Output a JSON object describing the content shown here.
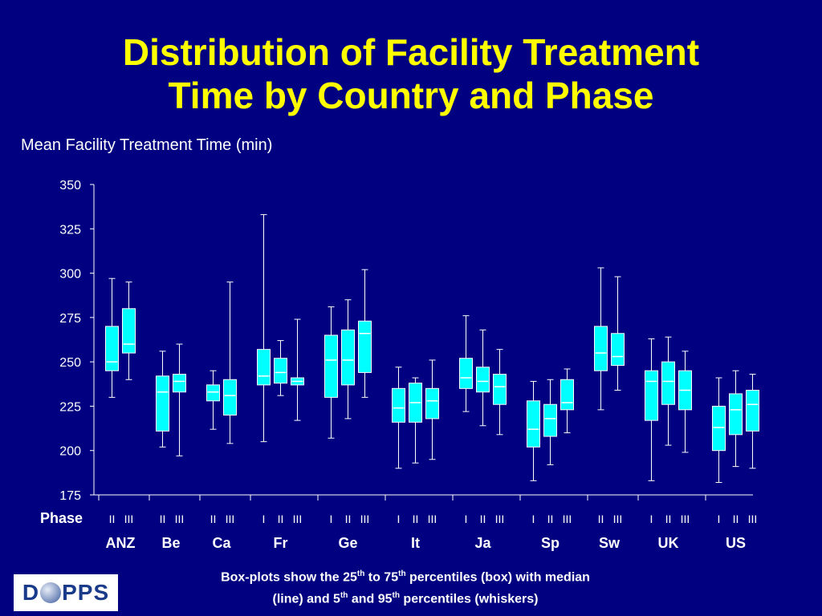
{
  "title_line1": "Distribution of Facility Treatment",
  "title_line2": "Time by Country and Phase",
  "footnote": {
    "part1": "Box-plots show the 25",
    "sup1": "th",
    "part2": " to 75",
    "sup2": "th",
    "part3": " percentiles (box) with median",
    "part4": "(line) and 5",
    "sup3": "th",
    "part5": " and 95",
    "sup4": "th",
    "part6": " percentiles (whiskers)"
  },
  "logo": {
    "text_left": "D",
    "text_right": "PPS",
    "icon": "globe-icon"
  },
  "colors": {
    "background": "#000080",
    "title": "#ffff00",
    "box": "#00ffff",
    "median": "#ffffff",
    "text": "#ffffff"
  },
  "chart_data": {
    "type": "boxplot",
    "ylabel": "Mean Facility Treatment Time (min)",
    "ylim": [
      175,
      350
    ],
    "yticks": [
      175,
      200,
      225,
      250,
      275,
      300,
      325,
      350
    ],
    "phase_label": "Phase",
    "groups": [
      {
        "country": "ANZ",
        "boxes": [
          {
            "phase": "II",
            "p5": 230,
            "q1": 245,
            "median": 250,
            "q3": 270,
            "p95": 297
          },
          {
            "phase": "III",
            "p5": 240,
            "q1": 255,
            "median": 260,
            "q3": 280,
            "p95": 295
          }
        ]
      },
      {
        "country": "Be",
        "boxes": [
          {
            "phase": "II",
            "p5": 202,
            "q1": 211,
            "median": 233,
            "q3": 242,
            "p95": 256
          },
          {
            "phase": "III",
            "p5": 197,
            "q1": 233,
            "median": 239,
            "q3": 243,
            "p95": 260
          }
        ]
      },
      {
        "country": "Ca",
        "boxes": [
          {
            "phase": "II",
            "p5": 212,
            "q1": 228,
            "median": 233,
            "q3": 237,
            "p95": 245
          },
          {
            "phase": "III",
            "p5": 204,
            "q1": 220,
            "median": 231,
            "q3": 240,
            "p95": 295
          }
        ]
      },
      {
        "country": "Fr",
        "boxes": [
          {
            "phase": "I",
            "p5": 205,
            "q1": 237,
            "median": 242,
            "q3": 257,
            "p95": 333
          },
          {
            "phase": "II",
            "p5": 231,
            "q1": 238,
            "median": 244,
            "q3": 252,
            "p95": 262
          },
          {
            "phase": "III",
            "p5": 217,
            "q1": 237,
            "median": 239,
            "q3": 241,
            "p95": 274
          }
        ]
      },
      {
        "country": "Ge",
        "boxes": [
          {
            "phase": "I",
            "p5": 207,
            "q1": 230,
            "median": 251,
            "q3": 265,
            "p95": 281
          },
          {
            "phase": "II",
            "p5": 218,
            "q1": 237,
            "median": 251,
            "q3": 268,
            "p95": 285
          },
          {
            "phase": "III",
            "p5": 230,
            "q1": 244,
            "median": 266,
            "q3": 273,
            "p95": 302
          }
        ]
      },
      {
        "country": "It",
        "boxes": [
          {
            "phase": "I",
            "p5": 190,
            "q1": 216,
            "median": 224,
            "q3": 235,
            "p95": 247
          },
          {
            "phase": "II",
            "p5": 193,
            "q1": 216,
            "median": 227,
            "q3": 238,
            "p95": 241
          },
          {
            "phase": "III",
            "p5": 195,
            "q1": 218,
            "median": 228,
            "q3": 235,
            "p95": 251
          }
        ]
      },
      {
        "country": "Ja",
        "boxes": [
          {
            "phase": "I",
            "p5": 222,
            "q1": 235,
            "median": 241,
            "q3": 252,
            "p95": 276
          },
          {
            "phase": "II",
            "p5": 214,
            "q1": 233,
            "median": 239,
            "q3": 247,
            "p95": 268
          },
          {
            "phase": "III",
            "p5": 209,
            "q1": 226,
            "median": 236,
            "q3": 243,
            "p95": 257
          }
        ]
      },
      {
        "country": "Sp",
        "boxes": [
          {
            "phase": "I",
            "p5": 183,
            "q1": 202,
            "median": 212,
            "q3": 228,
            "p95": 239
          },
          {
            "phase": "II",
            "p5": 192,
            "q1": 208,
            "median": 218,
            "q3": 226,
            "p95": 240
          },
          {
            "phase": "III",
            "p5": 210,
            "q1": 223,
            "median": 227,
            "q3": 240,
            "p95": 246
          }
        ]
      },
      {
        "country": "Sw",
        "boxes": [
          {
            "phase": "II",
            "p5": 223,
            "q1": 245,
            "median": 255,
            "q3": 270,
            "p95": 303
          },
          {
            "phase": "III",
            "p5": 234,
            "q1": 248,
            "median": 253,
            "q3": 266,
            "p95": 298
          }
        ]
      },
      {
        "country": "UK",
        "boxes": [
          {
            "phase": "I",
            "p5": 183,
            "q1": 217,
            "median": 239,
            "q3": 245,
            "p95": 263
          },
          {
            "phase": "II",
            "p5": 203,
            "q1": 226,
            "median": 239,
            "q3": 250,
            "p95": 264
          },
          {
            "phase": "III",
            "p5": 199,
            "q1": 223,
            "median": 234,
            "q3": 245,
            "p95": 256
          }
        ]
      },
      {
        "country": "US",
        "boxes": [
          {
            "phase": "I",
            "p5": 182,
            "q1": 200,
            "median": 213,
            "q3": 225,
            "p95": 241
          },
          {
            "phase": "II",
            "p5": 191,
            "q1": 209,
            "median": 223,
            "q3": 232,
            "p95": 245
          },
          {
            "phase": "III",
            "p5": 190,
            "q1": 211,
            "median": 226,
            "q3": 234,
            "p95": 243
          }
        ]
      }
    ]
  }
}
